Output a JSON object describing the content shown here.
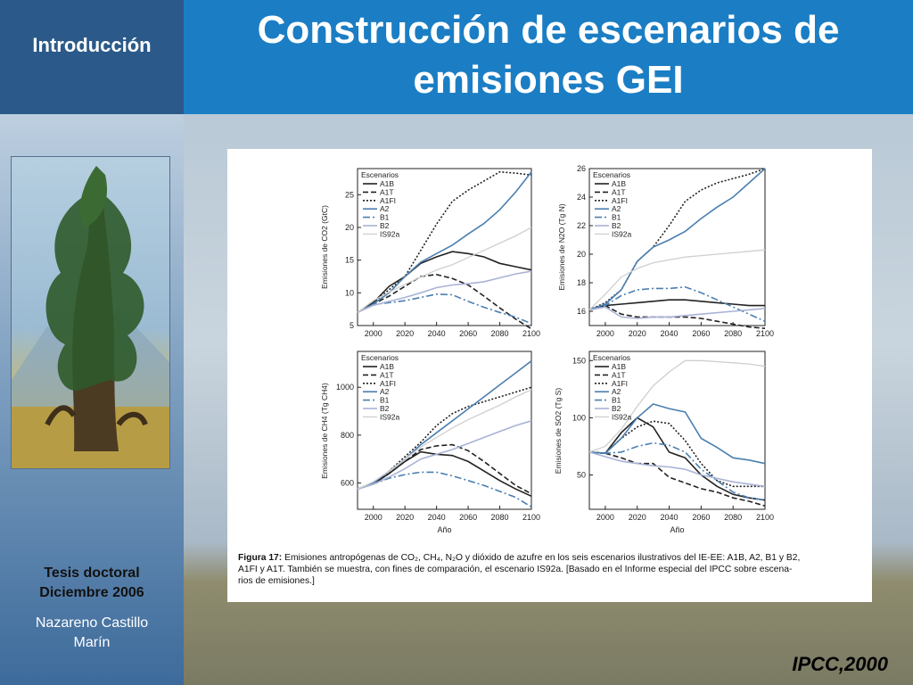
{
  "section": {
    "title": "Introducción"
  },
  "header": {
    "title_line1": "Construcción de escenarios de",
    "title_line2": "emisiones GEI"
  },
  "sidebar": {
    "thesis_line1": "Tesis doctoral",
    "thesis_line2": "Diciembre 2006",
    "author_line1": "Nazareno Castillo",
    "author_line2": "Marín"
  },
  "figure": {
    "caption_bold": "Figura 17:",
    "caption_line1": "Emisiones antropógenas de CO₂, CH₄, N₂O y dióxido de azufre en los seis escenarios ilustrativos del IE-EE: A1B, A2, B1 y B2,",
    "caption_line2": "A1FI y A1T. También se muestra, con fines de comparación, el escenario IS92a. [Basado en el Informe especial del IPCC sobre escena-",
    "caption_line3": "rios de emisiones.]"
  },
  "credit": "IPCC,2000",
  "colors": {
    "A1B": "#222222",
    "A1T": "#222222",
    "A1FI": "#222222",
    "A2": "#4b7fb0",
    "B1": "#4b7fb0",
    "B2": "#a9b3d6",
    "IS92a": "#cfcfcf"
  },
  "chart_data": [
    {
      "type": "line",
      "ylabel": "Emisiones de CO2 (GtC)",
      "xlabel": "",
      "x": [
        1990,
        2000,
        2010,
        2020,
        2030,
        2040,
        2050,
        2060,
        2070,
        2080,
        2090,
        2100
      ],
      "xlim": [
        1990,
        2100
      ],
      "ylim": [
        5,
        29
      ],
      "xticks": [
        "2000",
        "2020",
        "2040",
        "2060",
        "2080",
        "2100"
      ],
      "yticks": [
        "5",
        "10",
        "15",
        "20",
        "25"
      ],
      "legend_title": "Escenarios",
      "legend": [
        "A1B",
        "A1T",
        "A1FI",
        "A2",
        "B1",
        "B2",
        "IS92a"
      ],
      "series": [
        {
          "name": "A1B",
          "values": [
            7,
            8.5,
            11,
            12.5,
            14.5,
            15.5,
            16.3,
            16,
            15.5,
            14.5,
            14,
            13.5
          ]
        },
        {
          "name": "A1T",
          "values": [
            7,
            8.3,
            9.5,
            11,
            12.5,
            12.8,
            12.2,
            11.2,
            9.5,
            7.7,
            6,
            4.5
          ]
        },
        {
          "name": "A1FI",
          "values": [
            7,
            8.5,
            10.5,
            12.5,
            16.5,
            20.5,
            24,
            25.7,
            27.1,
            28.5,
            28.3,
            28
          ]
        },
        {
          "name": "A2",
          "values": [
            7,
            8.3,
            10,
            12.5,
            14.7,
            16,
            17.3,
            19,
            20.6,
            22.7,
            25.4,
            28.5
          ]
        },
        {
          "name": "B1",
          "values": [
            7,
            8.2,
            8.5,
            8.8,
            9.3,
            9.8,
            9.7,
            8.7,
            7.8,
            7,
            6.3,
            5.3
          ]
        },
        {
          "name": "B2",
          "values": [
            7,
            8.1,
            8.7,
            9.3,
            10,
            10.8,
            11.2,
            11.4,
            11.7,
            12.3,
            12.9,
            13.3
          ]
        },
        {
          "name": "IS92a",
          "values": [
            7,
            8.8,
            10.1,
            11.3,
            12.4,
            13.5,
            14.3,
            15.4,
            16.5,
            17.6,
            18.7,
            20
          ]
        }
      ]
    },
    {
      "type": "line",
      "ylabel": "Emisiones de N2O (Tg N)",
      "xlabel": "",
      "x": [
        1990,
        2000,
        2010,
        2020,
        2030,
        2040,
        2050,
        2060,
        2070,
        2080,
        2090,
        2100
      ],
      "xlim": [
        1990,
        2100
      ],
      "ylim": [
        15,
        26
      ],
      "xticks": [
        "2000",
        "2020",
        "2040",
        "2060",
        "2080",
        "2100"
      ],
      "yticks": [
        "16",
        "18",
        "20",
        "22",
        "24",
        "26"
      ],
      "legend_title": "Escenarios",
      "legend": [
        "A1B",
        "A1T",
        "A1FI",
        "A2",
        "B1",
        "B2",
        "IS92a"
      ],
      "series": [
        {
          "name": "A1B",
          "values": [
            16.1,
            16.4,
            16.5,
            16.6,
            16.7,
            16.8,
            16.8,
            16.7,
            16.6,
            16.5,
            16.4,
            16.4
          ]
        },
        {
          "name": "A1T",
          "values": [
            16.1,
            16.4,
            15.8,
            15.6,
            15.6,
            15.6,
            15.6,
            15.5,
            15.3,
            15.1,
            14.9,
            14.8
          ]
        },
        {
          "name": "A1FI",
          "values": [
            16.1,
            16.6,
            17.5,
            19.5,
            20.5,
            22,
            23.7,
            24.5,
            25,
            25.3,
            25.6,
            26
          ]
        },
        {
          "name": "A2",
          "values": [
            16.1,
            16.5,
            17.5,
            19.5,
            20.5,
            21,
            21.6,
            22.5,
            23.3,
            24,
            25,
            26
          ]
        },
        {
          "name": "B1",
          "values": [
            16.1,
            16.4,
            17.1,
            17.5,
            17.6,
            17.6,
            17.7,
            17.3,
            16.8,
            16.3,
            15.8,
            15.3
          ]
        },
        {
          "name": "B2",
          "values": [
            16.1,
            16.3,
            15.6,
            15.5,
            15.6,
            15.6,
            15.7,
            15.8,
            15.9,
            16,
            16.1,
            16.2
          ]
        },
        {
          "name": "IS92a",
          "values": [
            16.1,
            17.2,
            18.4,
            19,
            19.4,
            19.6,
            19.8,
            19.9,
            20,
            20.1,
            20.2,
            20.3
          ]
        }
      ]
    },
    {
      "type": "line",
      "ylabel": "Emisiones de CH4 (Tg CH4)",
      "xlabel": "Año",
      "x": [
        1990,
        2000,
        2010,
        2020,
        2030,
        2040,
        2050,
        2060,
        2070,
        2080,
        2090,
        2100
      ],
      "xlim": [
        1990,
        2100
      ],
      "ylim": [
        490,
        1150
      ],
      "xticks": [
        "2000",
        "2020",
        "2040",
        "2060",
        "2080",
        "2100"
      ],
      "yticks": [
        "600",
        "800",
        "1000"
      ],
      "legend_title": "Escenarios",
      "legend": [
        "A1B",
        "A1T",
        "A1FI",
        "A2",
        "B1",
        "B2",
        "IS92a"
      ],
      "series": [
        {
          "name": "A1B",
          "values": [
            575,
            595,
            640,
            690,
            730,
            720,
            715,
            690,
            650,
            610,
            575,
            545
          ]
        },
        {
          "name": "A1T",
          "values": [
            575,
            600,
            640,
            690,
            740,
            755,
            760,
            735,
            690,
            640,
            590,
            555
          ]
        },
        {
          "name": "A1FI",
          "values": [
            575,
            600,
            650,
            710,
            770,
            840,
            890,
            920,
            940,
            960,
            980,
            1000
          ]
        },
        {
          "name": "A2",
          "values": [
            575,
            600,
            650,
            700,
            760,
            810,
            860,
            910,
            960,
            1010,
            1060,
            1110
          ]
        },
        {
          "name": "B1",
          "values": [
            575,
            595,
            620,
            635,
            645,
            645,
            630,
            610,
            590,
            565,
            540,
            500
          ]
        },
        {
          "name": "B2",
          "values": [
            575,
            595,
            625,
            660,
            700,
            720,
            740,
            765,
            790,
            815,
            840,
            860
          ]
        },
        {
          "name": "IS92a",
          "values": [
            575,
            605,
            650,
            700,
            750,
            790,
            830,
            865,
            895,
            925,
            960,
            990
          ]
        }
      ]
    },
    {
      "type": "line",
      "ylabel": "Emisiones de SO2 (Tg S)",
      "xlabel": "Año",
      "x": [
        1990,
        2000,
        2010,
        2020,
        2030,
        2040,
        2050,
        2060,
        2070,
        2080,
        2090,
        2100
      ],
      "xlim": [
        1990,
        2100
      ],
      "ylim": [
        20,
        158
      ],
      "xticks": [
        "2000",
        "2020",
        "2040",
        "2060",
        "2080",
        "2100"
      ],
      "yticks": [
        "50",
        "100",
        "150"
      ],
      "legend_title": "Escenarios",
      "legend": [
        "A1B",
        "A1T",
        "A1FI",
        "A2",
        "B1",
        "B2",
        "IS92a"
      ],
      "series": [
        {
          "name": "A1B",
          "values": [
            70,
            69,
            87,
            100,
            92,
            70,
            65,
            50,
            40,
            33,
            30,
            28
          ]
        },
        {
          "name": "A1T",
          "values": [
            70,
            69,
            65,
            60,
            60,
            48,
            43,
            38,
            35,
            30,
            27,
            23
          ]
        },
        {
          "name": "A1FI",
          "values": [
            70,
            69,
            82,
            92,
            97,
            95,
            80,
            60,
            45,
            40,
            40,
            40
          ]
        },
        {
          "name": "A2",
          "values": [
            70,
            69,
            82,
            100,
            112,
            108,
            105,
            82,
            74,
            65,
            63,
            60
          ]
        },
        {
          "name": "B1",
          "values": [
            70,
            69,
            70,
            75,
            78,
            76,
            70,
            55,
            45,
            35,
            30,
            28
          ]
        },
        {
          "name": "B2",
          "values": [
            70,
            66,
            62,
            60,
            58,
            57,
            55,
            50,
            47,
            44,
            42,
            40
          ]
        },
        {
          "name": "IS92a",
          "values": [
            70,
            75,
            90,
            110,
            128,
            140,
            150,
            150,
            149,
            148,
            147,
            145
          ]
        }
      ]
    }
  ]
}
